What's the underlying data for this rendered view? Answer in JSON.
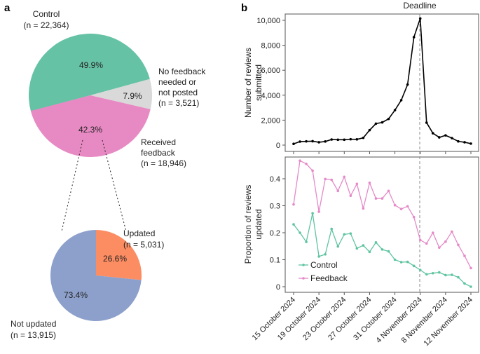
{
  "panel_a_label": "a",
  "panel_b_label": "b",
  "chart_data": [
    {
      "type": "pie",
      "panel": "a",
      "slices": [
        {
          "label": "Control",
          "n_text": "(n = 22,364)",
          "value": 49.9,
          "pct_label": "49.9%",
          "color": "#66c2a5"
        },
        {
          "label": "No feedback needed or not posted",
          "label_lines": [
            "No feedback",
            "needed or",
            "not posted"
          ],
          "n_text": "(n = 3,521)",
          "value": 7.9,
          "pct_label": "7.9%",
          "color": "#d9d9d9"
        },
        {
          "label": "Received feedback",
          "label_lines": [
            "Received",
            "feedback"
          ],
          "n_text": "(n = 18,946)",
          "value": 42.3,
          "pct_label": "42.3%",
          "color": "#e78ac3"
        }
      ]
    },
    {
      "type": "pie",
      "panel": "a",
      "slices": [
        {
          "label": "Updated",
          "n_text": "(n = 5,031)",
          "value": 26.6,
          "pct_label": "26.6%",
          "color": "#fc8d62"
        },
        {
          "label": "Not updated",
          "n_text": "(n = 13,915)",
          "value": 73.4,
          "pct_label": "73.4%",
          "color": "#8da0cb"
        }
      ]
    },
    {
      "type": "line",
      "panel": "b",
      "title": "Deadline",
      "ylabel_lines": [
        "Number of reviews",
        "submitted"
      ],
      "ylim": [
        0,
        10000
      ],
      "yticks": [
        "0",
        "2,000",
        "4,000",
        "6,000",
        "8,000",
        "10,000"
      ],
      "ytick_values": [
        0,
        2000,
        4000,
        6000,
        8000,
        10000
      ],
      "x_start": "15 October 2024",
      "x_end": "12 November 2024",
      "deadline": "4 November 2024",
      "grid": false,
      "series": [
        {
          "color": "#000000",
          "values": [
            100,
            280,
            300,
            310,
            230,
            290,
            450,
            430,
            430,
            470,
            460,
            580,
            1200,
            1720,
            1820,
            2100,
            2800,
            3600,
            4850,
            8650,
            10150,
            1800,
            950,
            620,
            780,
            560,
            300,
            230,
            120
          ]
        }
      ]
    },
    {
      "type": "line",
      "panel": "b",
      "ylabel_lines": [
        "Proportion of reviews",
        "updated"
      ],
      "ylim": [
        0,
        0.45
      ],
      "yticks": [
        "0",
        "0.1",
        "0.2",
        "0.3",
        "0.4"
      ],
      "ytick_values": [
        0,
        0.1,
        0.2,
        0.3,
        0.4
      ],
      "xticks": [
        "15 October 2024",
        "19 October 2024",
        "23 October 2024",
        "27 October 2024",
        "31 October 2024",
        "4 November 2024",
        "8 November 2024",
        "12 November 2024"
      ],
      "deadline": "4 November 2024",
      "legend": "bottom-left",
      "grid": false,
      "series": [
        {
          "name": "Control",
          "color": "#5fc4a0",
          "values": [
            0.231,
            0.2,
            0.166,
            0.272,
            0.112,
            0.12,
            0.214,
            0.149,
            0.194,
            0.197,
            0.142,
            0.153,
            0.129,
            0.164,
            0.138,
            0.131,
            0.1,
            0.091,
            0.092,
            0.077,
            0.062,
            0.046,
            0.05,
            0.053,
            0.043,
            0.044,
            0.035,
            0.012,
            0.0
          ]
        },
        {
          "name": "Feedback",
          "color": "#e58ac8",
          "values": [
            0.305,
            0.467,
            0.455,
            0.43,
            0.278,
            0.399,
            0.396,
            0.355,
            0.407,
            0.337,
            0.381,
            0.29,
            0.385,
            0.327,
            0.327,
            0.355,
            0.302,
            0.288,
            0.298,
            0.258,
            0.173,
            0.16,
            0.2,
            0.145,
            0.167,
            0.204,
            0.155,
            0.114,
            0.069
          ]
        }
      ]
    }
  ]
}
